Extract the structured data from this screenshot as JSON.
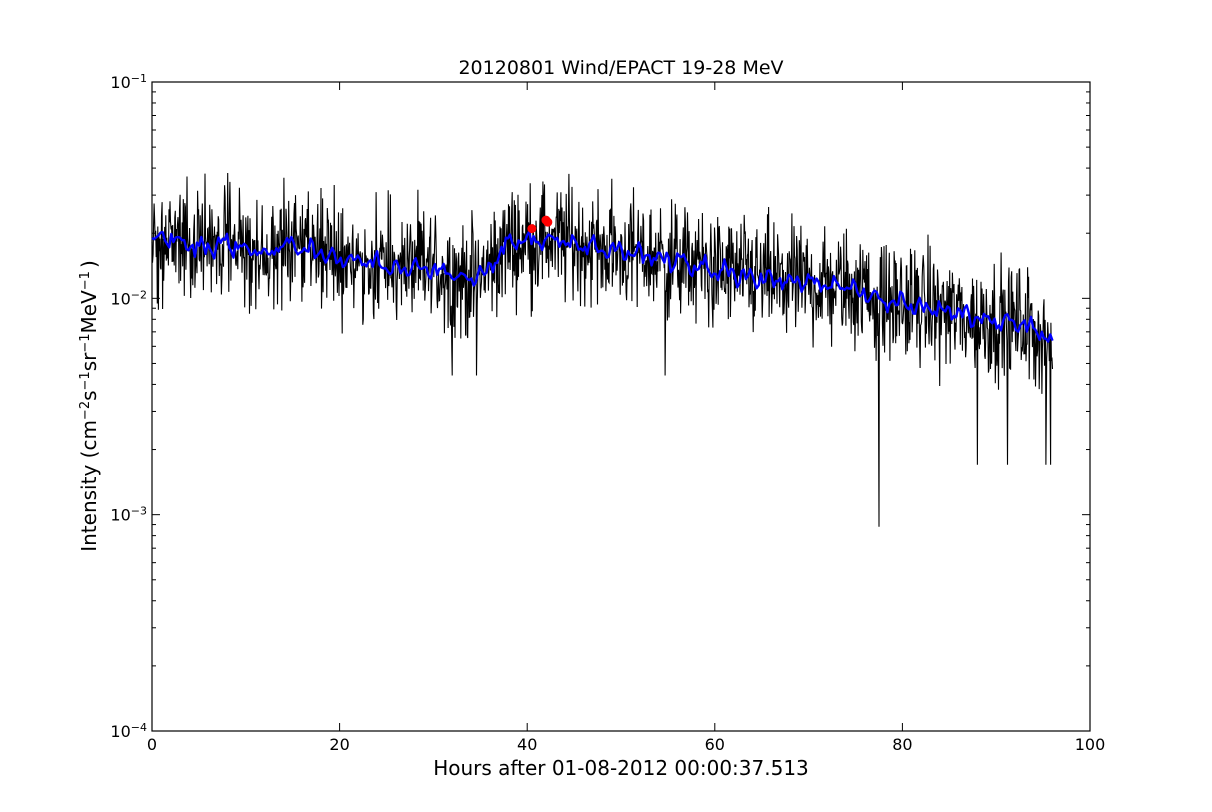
{
  "chart_data": {
    "type": "line",
    "title": "20120801 Wind/EPACT 19-28 MeV",
    "xlabel": "Hours after 01-08-2012 00:00:37.513",
    "ylabel_parts": {
      "pre": "Intensity (cm",
      "exp1": "−2",
      "mid1": "s",
      "exp2": "−1",
      "mid2": "sr",
      "exp3": "−1",
      "mid3": "MeV",
      "exp4": "−1",
      "post": ")"
    },
    "xlim": [
      0,
      100
    ],
    "ylim": [
      0.0001,
      0.1
    ],
    "yscale": "log",
    "xticks": [
      0,
      20,
      40,
      60,
      80,
      100
    ],
    "xtick_labels": [
      "0",
      "20",
      "40",
      "60",
      "80",
      "100"
    ],
    "yticks": [
      0.0001,
      0.001,
      0.01,
      0.1
    ],
    "ytick_labels": [
      {
        "base": "10",
        "exp": "−4"
      },
      {
        "base": "10",
        "exp": "−3"
      },
      {
        "base": "10",
        "exp": "−2"
      },
      {
        "base": "10",
        "exp": "−1"
      }
    ],
    "grid": false,
    "series": [
      {
        "role": "raw intensity",
        "color": "#000000",
        "anchors_x": [
          0,
          2,
          5,
          8,
          12,
          15,
          18,
          22,
          26,
          30,
          34,
          36,
          38,
          42,
          45,
          48,
          52,
          56,
          60,
          64,
          68,
          72,
          76,
          78,
          80,
          84,
          88,
          92,
          95,
          96
        ],
        "anchors_y": [
          0.018,
          0.019,
          0.017,
          0.018,
          0.016,
          0.018,
          0.016,
          0.015,
          0.014,
          0.0138,
          0.012,
          0.014,
          0.018,
          0.019,
          0.018,
          0.017,
          0.016,
          0.0148,
          0.0135,
          0.0125,
          0.012,
          0.0115,
          0.0108,
          0.0095,
          0.0095,
          0.0088,
          0.008,
          0.0078,
          0.0068,
          0.006
        ],
        "spread": 0.3,
        "spikes": [
          {
            "x": 15.3,
            "y": 0.03
          },
          {
            "x": 32.0,
            "y": 0.0044
          },
          {
            "x": 34.6,
            "y": 0.0044
          },
          {
            "x": 54.7,
            "y": 0.0044
          },
          {
            "x": 77.5,
            "y": 0.00088
          },
          {
            "x": 88.0,
            "y": 0.0017
          },
          {
            "x": 91.2,
            "y": 0.0017
          },
          {
            "x": 95.3,
            "y": 0.0017
          },
          {
            "x": 95.8,
            "y": 0.0017
          }
        ]
      },
      {
        "role": "smoothed intensity",
        "color": "#0000ff",
        "anchors_x": [
          0,
          2,
          5,
          8,
          12,
          15,
          18,
          22,
          26,
          30,
          34,
          36,
          38,
          42,
          45,
          48,
          52,
          56,
          60,
          64,
          68,
          72,
          76,
          78,
          80,
          84,
          88,
          92,
          95,
          96
        ],
        "anchors_y": [
          0.018,
          0.019,
          0.017,
          0.018,
          0.016,
          0.018,
          0.016,
          0.015,
          0.014,
          0.0138,
          0.012,
          0.014,
          0.018,
          0.019,
          0.018,
          0.017,
          0.016,
          0.0148,
          0.0135,
          0.0125,
          0.012,
          0.0115,
          0.0108,
          0.0095,
          0.0095,
          0.0088,
          0.008,
          0.0078,
          0.0068,
          0.006
        ]
      }
    ],
    "markers": {
      "color": "#ff0000",
      "points": [
        {
          "x": 40.5,
          "y": 0.021
        },
        {
          "x": 42.0,
          "y": 0.023
        },
        {
          "x": 42.2,
          "y": 0.0225
        }
      ]
    }
  }
}
